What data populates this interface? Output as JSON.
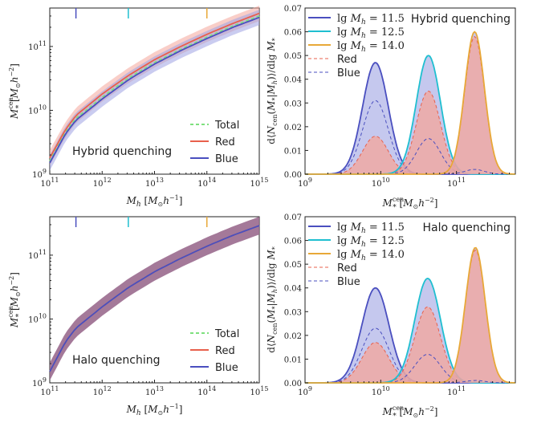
{
  "colors": {
    "total": "#7ee07e",
    "red": "#e8604c",
    "blue": "#4a4fbf",
    "cyan": "#1fbfd0",
    "orange": "#e8a838",
    "red_fill": "#f4a59a",
    "blue_fill": "#9fa3e3",
    "halo_fill": "#9a6a8e"
  },
  "chart_data": [
    {
      "id": "smhm_hybrid",
      "type": "line",
      "title": "",
      "annotation": "Hybrid quenching",
      "xlabel": "M_h [M_sun h^-1]",
      "ylabel": "M_*^cen [M_sun h^-2]",
      "xscale": "log",
      "yscale": "log",
      "xlim": [
        100000000000.0,
        1000000000000000.0
      ],
      "ylim": [
        1000000000.0,
        400000000000.0
      ],
      "xticks": [
        {
          "v": 100000000000.0,
          "b": "10",
          "e": "11"
        },
        {
          "v": 1000000000000.0,
          "b": "10",
          "e": "12"
        },
        {
          "v": 10000000000000.0,
          "b": "10",
          "e": "13"
        },
        {
          "v": 100000000000000.0,
          "b": "10",
          "e": "14"
        },
        {
          "v": 1000000000000000.0,
          "b": "10",
          "e": "15"
        }
      ],
      "yticks": [
        {
          "v": 1000000000.0,
          "b": "10",
          "e": "9"
        },
        {
          "v": 10000000000.0,
          "b": "10",
          "e": "10"
        },
        {
          "v": 100000000000.0,
          "b": "10",
          "e": "11"
        }
      ],
      "markers": [
        {
          "x": 316000000000.0,
          "color": "blue"
        },
        {
          "x": 3160000000000.0,
          "color": "cyan"
        },
        {
          "x": 100000000000000.0,
          "color": "orange"
        }
      ],
      "x": [
        100000000000.0,
        200000000000.0,
        316000000000.0,
        1000000000000.0,
        3160000000000.0,
        10000000000000.0,
        31600000000000.0,
        100000000000000.0,
        316000000000000.0,
        1000000000000000.0
      ],
      "series": [
        {
          "name": "Total",
          "color": "total",
          "dash": true,
          "values": [
            1600000000.0,
            4600000000.0,
            7500000000.0,
            16000000000.0,
            32000000000.0,
            56000000000.0,
            90000000000.0,
            140000000000.0,
            210000000000.0,
            300000000000.0
          ]
        },
        {
          "name": "Red",
          "color": "red",
          "band": "red_fill",
          "band_dex": 0.12,
          "values": [
            1800000000.0,
            5000000000.0,
            8300000000.0,
            18000000000.0,
            35000000000.0,
            62000000000.0,
            100000000000.0,
            155000000000.0,
            230000000000.0,
            330000000000.0
          ]
        },
        {
          "name": "Blue",
          "color": "blue",
          "band": "blue_fill",
          "band_dex": 0.12,
          "values": [
            1500000000.0,
            4300000000.0,
            7000000000.0,
            15000000000.0,
            30000000000.0,
            53000000000.0,
            86000000000.0,
            133000000000.0,
            200000000000.0,
            285000000000.0
          ]
        }
      ],
      "legend": [
        {
          "label": "Total",
          "color": "total",
          "dash": true
        },
        {
          "label": "Red",
          "color": "red"
        },
        {
          "label": "Blue",
          "color": "blue"
        }
      ]
    },
    {
      "id": "dist_hybrid",
      "type": "line",
      "annotation": "Hybrid quenching",
      "xlabel": "M_*^cen [M_sun h^-2]",
      "ylabel": "d<N_cen(M_*|M_h)>/dlg M_*",
      "xscale": "log",
      "xlim": [
        1000000000.0,
        600000000000.0
      ],
      "ylim": [
        0,
        0.07
      ],
      "xticks": [
        {
          "v": 1000000000.0,
          "b": "10",
          "e": "9"
        },
        {
          "v": 10000000000.0,
          "b": "10",
          "e": "10"
        },
        {
          "v": 100000000000.0,
          "b": "10",
          "e": "11"
        }
      ],
      "yticks": [
        "0.00",
        "0.01",
        "0.02",
        "0.03",
        "0.04",
        "0.05",
        "0.06",
        "0.07"
      ],
      "components": [
        {
          "halo": "lg M_h = 11.5",
          "color": "blue",
          "mu": 9.93,
          "red_amp": 0.016,
          "red_sig": 0.17,
          "blue_amp": 0.031,
          "blue_sig": 0.17
        },
        {
          "halo": "lg M_h = 12.5",
          "color": "cyan",
          "mu": 10.63,
          "red_amp": 0.035,
          "red_sig": 0.16,
          "blue_amp": 0.015,
          "blue_sig": 0.16
        },
        {
          "halo": "lg M_h = 14.0",
          "color": "orange",
          "mu": 11.24,
          "red_amp": 0.058,
          "red_sig": 0.13,
          "blue_amp": 0.002,
          "blue_sig": 0.13
        }
      ],
      "legend": [
        {
          "pre": "lg ",
          "math": "M",
          "sub": "h",
          "post": " = 11.5",
          "color": "blue"
        },
        {
          "pre": "lg ",
          "math": "M",
          "sub": "h",
          "post": " = 12.5",
          "color": "cyan"
        },
        {
          "pre": "lg ",
          "math": "M",
          "sub": "h",
          "post": " = 14.0",
          "color": "orange"
        },
        {
          "label": "Red",
          "color": "red",
          "dash": true
        },
        {
          "label": "Blue",
          "color": "blue",
          "dash": true
        }
      ]
    },
    {
      "id": "smhm_halo",
      "type": "line",
      "annotation": "Halo quenching",
      "xlabel": "M_h [M_sun h^-1]",
      "ylabel": "M_*^cen [M_sun h^-2]",
      "xscale": "log",
      "yscale": "log",
      "xlim": [
        100000000000.0,
        1000000000000000.0
      ],
      "ylim": [
        1000000000.0,
        400000000000.0
      ],
      "markers": [
        {
          "x": 316000000000.0,
          "color": "blue"
        },
        {
          "x": 3160000000000.0,
          "color": "cyan"
        },
        {
          "x": 100000000000000.0,
          "color": "orange"
        }
      ],
      "x": [
        100000000000.0,
        200000000000.0,
        316000000000.0,
        1000000000000.0,
        3160000000000.0,
        10000000000000.0,
        31600000000000.0,
        100000000000000.0,
        316000000000000.0,
        1000000000000000.0
      ],
      "series": [
        {
          "name": "Total",
          "color": "total",
          "dash": true,
          "values": [
            1500000000.0,
            4400000000.0,
            7200000000.0,
            15500000000.0,
            31000000000.0,
            55000000000.0,
            89000000000.0,
            138000000000.0,
            205000000000.0,
            290000000000.0
          ]
        },
        {
          "name": "Red",
          "color": "red",
          "band": "halo_fill",
          "band_dex": 0.14,
          "values": [
            1500000000.0,
            4400000000.0,
            7200000000.0,
            15500000000.0,
            31000000000.0,
            55000000000.0,
            89000000000.0,
            138000000000.0,
            205000000000.0,
            290000000000.0
          ]
        },
        {
          "name": "Blue",
          "color": "blue",
          "values": [
            1500000000.0,
            4400000000.0,
            7200000000.0,
            15500000000.0,
            31000000000.0,
            55000000000.0,
            89000000000.0,
            138000000000.0,
            205000000000.0,
            290000000000.0
          ]
        }
      ],
      "legend": [
        {
          "label": "Total",
          "color": "total",
          "dash": true
        },
        {
          "label": "Red",
          "color": "red"
        },
        {
          "label": "Blue",
          "color": "blue"
        }
      ]
    },
    {
      "id": "dist_halo",
      "type": "line",
      "annotation": "Halo quenching",
      "xlabel": "M_*^cen [M_sun h^-2]",
      "ylabel": "d<N_cen(M_*|M_h)>/dlg M_*",
      "xscale": "log",
      "xlim": [
        1000000000.0,
        600000000000.0
      ],
      "ylim": [
        0,
        0.07
      ],
      "components": [
        {
          "halo": "lg M_h = 11.5",
          "color": "blue",
          "mu": 9.93,
          "red_amp": 0.017,
          "red_sig": 0.18,
          "blue_amp": 0.023,
          "blue_sig": 0.18
        },
        {
          "halo": "lg M_h = 12.5",
          "color": "cyan",
          "mu": 10.62,
          "red_amp": 0.032,
          "red_sig": 0.17,
          "blue_amp": 0.012,
          "blue_sig": 0.17
        },
        {
          "halo": "lg M_h = 14.0",
          "color": "orange",
          "mu": 11.25,
          "red_amp": 0.056,
          "red_sig": 0.13,
          "blue_amp": 0.001,
          "blue_sig": 0.13
        }
      ],
      "legend": [
        {
          "pre": "lg ",
          "math": "M",
          "sub": "h",
          "post": " = 11.5",
          "color": "blue"
        },
        {
          "pre": "lg ",
          "math": "M",
          "sub": "h",
          "post": " = 12.5",
          "color": "cyan"
        },
        {
          "pre": "lg ",
          "math": "M",
          "sub": "h",
          "post": " = 14.0",
          "color": "orange"
        },
        {
          "label": "Red",
          "color": "red",
          "dash": true
        },
        {
          "label": "Blue",
          "color": "blue",
          "dash": true
        }
      ]
    }
  ]
}
